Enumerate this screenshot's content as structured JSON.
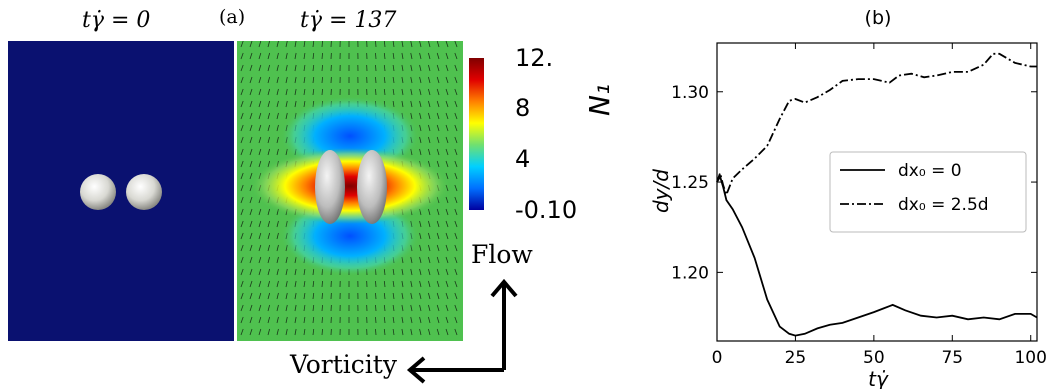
{
  "panel_a": {
    "label": "(a)",
    "left_title": "tγ̇ = 0",
    "right_title": "tγ̇ = 137",
    "colorbar": {
      "label": "N₁",
      "ticks": [
        "12.",
        "8",
        "4",
        "-0.10"
      ],
      "colors": [
        "#0000a0",
        "#0070ff",
        "#00d0ff",
        "#70e070",
        "#ffff00",
        "#ff8000",
        "#e00000",
        "#800000"
      ]
    },
    "flow_label": "Flow",
    "vorticity_label": "Vorticity"
  },
  "chart_data": {
    "type": "line",
    "title": "(b)",
    "xlabel": "tγ̇",
    "ylabel": "dy/d",
    "xlim": [
      0,
      102
    ],
    "ylim": [
      1.162,
      1.327
    ],
    "xticks": [
      0,
      25,
      50,
      75,
      100
    ],
    "yticks": [
      1.2,
      1.25,
      1.3
    ],
    "ytick_labels": [
      "1.20",
      "1.25",
      "1.30"
    ],
    "legend_position": "center-right",
    "series": [
      {
        "name": "dx₀ = 0",
        "style": "solid",
        "x": [
          0,
          1,
          2,
          3,
          5,
          8,
          12,
          16,
          20,
          23,
          25,
          28,
          32,
          36,
          40,
          45,
          50,
          53,
          56,
          60,
          65,
          70,
          75,
          80,
          85,
          90,
          95,
          100,
          102
        ],
        "y": [
          1.25,
          1.253,
          1.247,
          1.24,
          1.235,
          1.225,
          1.208,
          1.185,
          1.17,
          1.166,
          1.165,
          1.166,
          1.169,
          1.171,
          1.172,
          1.175,
          1.178,
          1.18,
          1.182,
          1.179,
          1.176,
          1.175,
          1.176,
          1.174,
          1.175,
          1.174,
          1.177,
          1.177,
          1.175
        ]
      },
      {
        "name": "dx₀ = 2.5d",
        "style": "dashdot",
        "x": [
          0,
          1,
          2,
          3,
          5,
          8,
          12,
          16,
          20,
          23,
          25,
          28,
          32,
          36,
          40,
          45,
          50,
          55,
          58,
          62,
          66,
          70,
          75,
          80,
          85,
          88,
          90,
          95,
          100,
          102
        ],
        "y": [
          1.25,
          1.255,
          1.248,
          1.243,
          1.252,
          1.257,
          1.263,
          1.27,
          1.285,
          1.295,
          1.296,
          1.294,
          1.297,
          1.301,
          1.306,
          1.307,
          1.307,
          1.305,
          1.309,
          1.31,
          1.308,
          1.309,
          1.311,
          1.311,
          1.315,
          1.321,
          1.321,
          1.316,
          1.314,
          1.314
        ]
      }
    ]
  }
}
